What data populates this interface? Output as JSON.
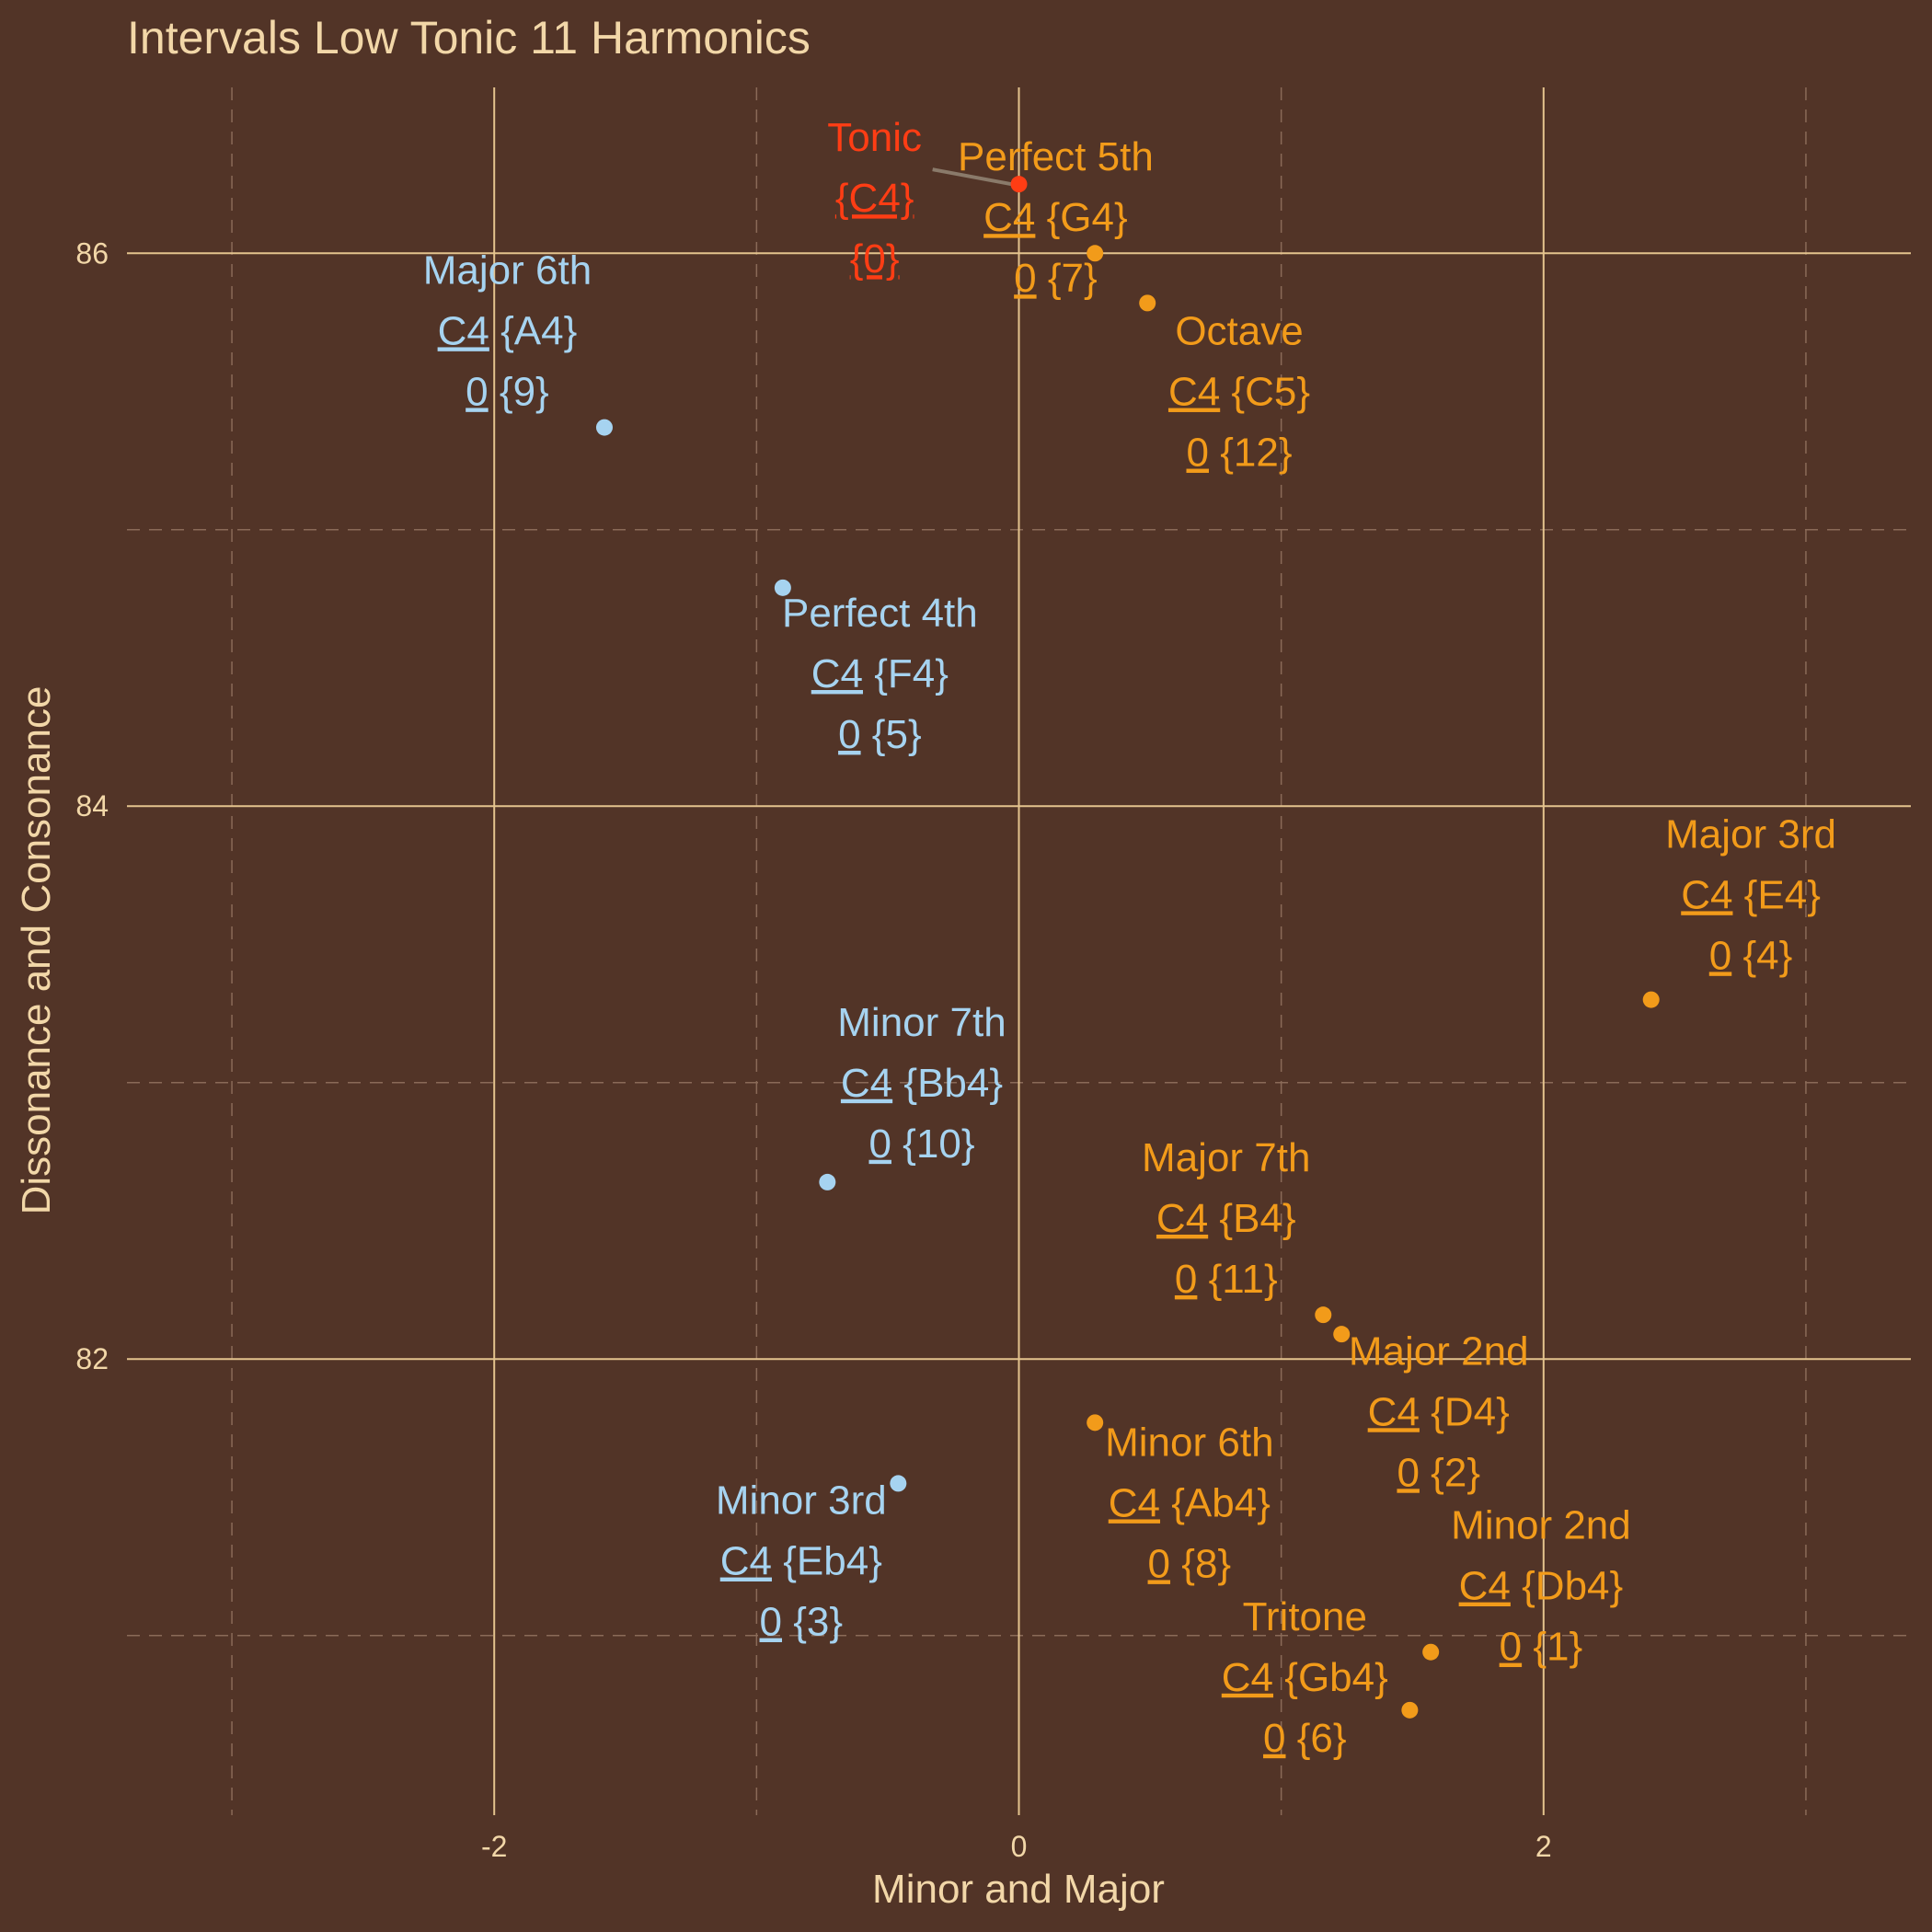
{
  "chart_data": {
    "type": "scatter",
    "title": "Intervals Low Tonic 11 Harmonics",
    "xlabel": "Minor and Major",
    "ylabel": "Dissonance and Consonance",
    "xlim": [
      -3.4,
      3.4
    ],
    "ylim": [
      80.35,
      86.6
    ],
    "x_ticks": [
      -2,
      0,
      2
    ],
    "x_tick_labels": [
      "-2",
      "0",
      "2"
    ],
    "y_ticks": [
      82,
      84,
      86
    ],
    "y_tick_labels": [
      "82",
      "84",
      "86"
    ],
    "grid": true,
    "legend": "none",
    "colors": {
      "background": "#523427",
      "grid_major": "#e4c38e",
      "grid_minor": "#8a6a58",
      "text": "#f2d7a8",
      "tonic": "#ff3d14",
      "major": "#f29b1a",
      "minor": "#a6d3f0",
      "leader_line": "#8a7a6a"
    },
    "points": [
      {
        "name": "Tonic",
        "group": "tonic",
        "x": 0.0,
        "y": 86.25,
        "line2": "{C4}",
        "line3": "{0}",
        "label_x": -0.55,
        "label_y": 86.15
      },
      {
        "name": "Perfect 5th",
        "group": "major",
        "x": 0.29,
        "y": 86.0,
        "line2": "C4 {G4}",
        "line3": "0 {7}",
        "label_x": 0.14,
        "label_y": 86.08
      },
      {
        "name": "Octave",
        "group": "major",
        "x": 0.49,
        "y": 85.82,
        "line2": "C4 {C5}",
        "line3": "0 {12}",
        "label_x": 0.84,
        "label_y": 85.45
      },
      {
        "name": "Major 6th",
        "group": "minor",
        "x": -1.58,
        "y": 85.37,
        "line2": "C4 {A4}",
        "line3": "0 {9}",
        "label_x": -1.95,
        "label_y": 85.67
      },
      {
        "name": "Perfect 4th",
        "group": "minor",
        "x": -0.9,
        "y": 84.79,
        "line2": "C4 {F4}",
        "line3": "0 {5}",
        "label_x": -0.53,
        "label_y": 84.43
      },
      {
        "name": "Major 3rd",
        "group": "major",
        "x": 2.41,
        "y": 83.3,
        "line2": "C4 {E4}",
        "line3": "0 {4}",
        "label_x": 2.79,
        "label_y": 83.63
      },
      {
        "name": "Minor 7th",
        "group": "minor",
        "x": -0.73,
        "y": 82.64,
        "line2": "C4 {Bb4}",
        "line3": "0 {10}",
        "label_x": -0.37,
        "label_y": 82.95
      },
      {
        "name": "Major 7th",
        "group": "major",
        "x": 1.16,
        "y": 82.16,
        "line2": "C4 {B4}",
        "line3": "0 {11}",
        "label_x": 0.79,
        "label_y": 82.46
      },
      {
        "name": "Major 2nd",
        "group": "major",
        "x": 1.23,
        "y": 82.09,
        "line2": "C4 {D4}",
        "line3": "0 {2}",
        "label_x": 1.6,
        "label_y": 81.76
      },
      {
        "name": "Minor 6th",
        "group": "major",
        "x": 0.29,
        "y": 81.77,
        "line2": "C4 {Ab4}",
        "line3": "0 {8}",
        "label_x": 0.65,
        "label_y": 81.43
      },
      {
        "name": "Minor 3rd",
        "group": "minor",
        "x": -0.46,
        "y": 81.55,
        "line2": "C4 {Eb4}",
        "line3": "0 {3}",
        "label_x": -0.83,
        "label_y": 81.22
      },
      {
        "name": "Minor 2nd",
        "group": "major",
        "x": 1.57,
        "y": 80.94,
        "line2": "C4 {Db4}",
        "line3": "0 {1}",
        "label_x": 1.99,
        "label_y": 81.13
      },
      {
        "name": "Tritone",
        "group": "major",
        "x": 1.49,
        "y": 80.73,
        "line2": "C4 {Gb4}",
        "line3": "0 {6}",
        "label_x": 1.09,
        "label_y": 80.8
      }
    ]
  }
}
